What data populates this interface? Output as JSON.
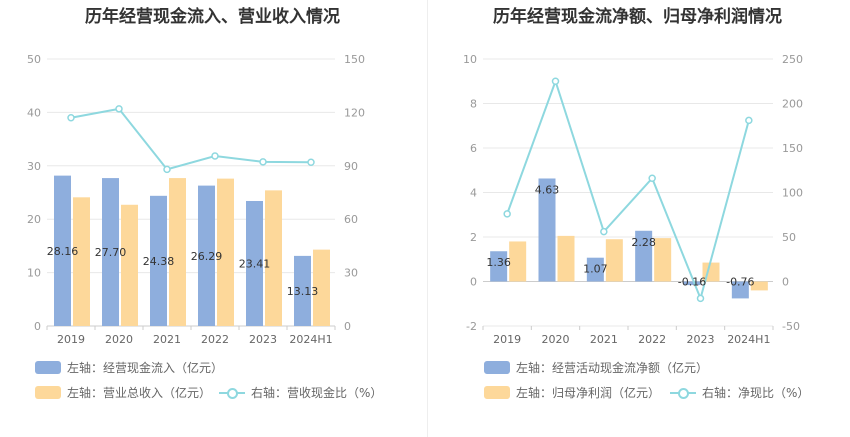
{
  "charts": {
    "left": {
      "title": "历年经营现金流入、营业收入情况",
      "legend": {
        "bar1": "左轴：经营现金流入（亿元）",
        "bar2": "左轴：营业总收入（亿元）",
        "line": "右轴：营收现金比（%）"
      }
    },
    "right": {
      "title": "历年经营现金流净额、归母净利润情况",
      "legend": {
        "bar1": "左轴：经营活动现金流净额（亿元）",
        "bar2": "左轴：归母净利润（亿元）",
        "line": "右轴：净现比（%）"
      }
    }
  },
  "colors": {
    "bar1": "#8eaedd",
    "bar2": "#fdd89a",
    "line": "#8ed8df"
  },
  "chart_data": [
    {
      "type": "bar",
      "title": "历年经营现金流入、营业收入情况",
      "categories": [
        "2019",
        "2020",
        "2021",
        "2022",
        "2023",
        "2024H1"
      ],
      "left_axis": {
        "ticks": [
          0,
          10,
          20,
          30,
          40,
          50
        ],
        "ylim": [
          0,
          50
        ]
      },
      "right_axis": {
        "ticks": [
          0,
          30,
          60,
          90,
          120,
          150
        ],
        "ylim": [
          0,
          150
        ]
      },
      "series": [
        {
          "name": "经营现金流入（亿元）",
          "axis": "left",
          "kind": "bar",
          "values": [
            28.16,
            27.7,
            24.38,
            26.29,
            23.41,
            13.13
          ],
          "labels": [
            "28.16",
            "27.70",
            "24.38",
            "26.29",
            "23.41",
            "13.13"
          ]
        },
        {
          "name": "营业总收入（亿元）",
          "axis": "left",
          "kind": "bar",
          "values": [
            24.1,
            22.7,
            27.7,
            27.6,
            25.4,
            14.3
          ]
        },
        {
          "name": "营收现金比（%）",
          "axis": "right",
          "kind": "line",
          "values": [
            117,
            122,
            88,
            95.5,
            92.2,
            92
          ]
        }
      ]
    },
    {
      "type": "bar",
      "title": "历年经营现金流净额、归母净利润情况",
      "categories": [
        "2019",
        "2020",
        "2021",
        "2022",
        "2023",
        "2024H1"
      ],
      "left_axis": {
        "ticks": [
          -2,
          0,
          2,
          4,
          6,
          8,
          10
        ],
        "ylim": [
          -2,
          10
        ]
      },
      "right_axis": {
        "ticks": [
          -50,
          0,
          50,
          100,
          150,
          200,
          250
        ],
        "ylim": [
          -50,
          250
        ]
      },
      "series": [
        {
          "name": "经营活动现金流净额（亿元）",
          "axis": "left",
          "kind": "bar",
          "values": [
            1.36,
            4.63,
            1.07,
            2.28,
            -0.16,
            -0.76
          ],
          "labels": [
            "1.36",
            "4.63",
            "1.07",
            "2.28",
            "-0.16",
            "-0.76"
          ]
        },
        {
          "name": "归母净利润（亿元）",
          "axis": "left",
          "kind": "bar",
          "values": [
            1.8,
            2.05,
            1.9,
            1.95,
            0.85,
            -0.4
          ]
        },
        {
          "name": "净现比（%）",
          "axis": "right",
          "kind": "line",
          "values": [
            76,
            225,
            56,
            116,
            -19,
            181
          ]
        }
      ]
    }
  ]
}
